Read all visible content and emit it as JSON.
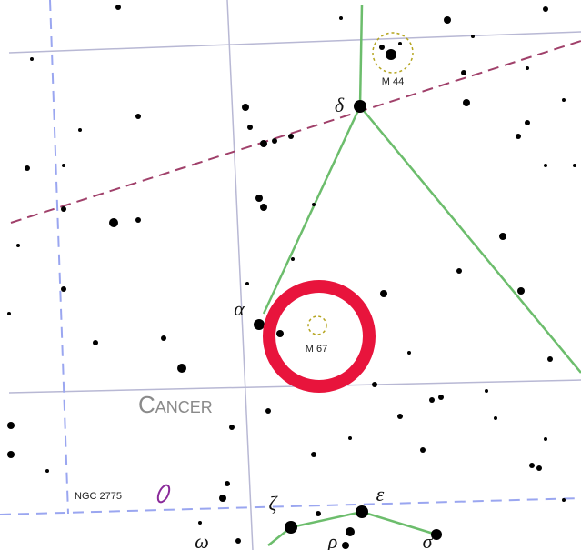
{
  "labels": {
    "m44": "M 44",
    "delta": "δ",
    "alpha": "α",
    "m67": "M 67",
    "constellation": "Cancer",
    "ngc": "NGC 2775",
    "zeta": "ζ",
    "epsilon": "ε",
    "omega": "ω",
    "rho": "ρ",
    "sigma": "σ"
  }
}
